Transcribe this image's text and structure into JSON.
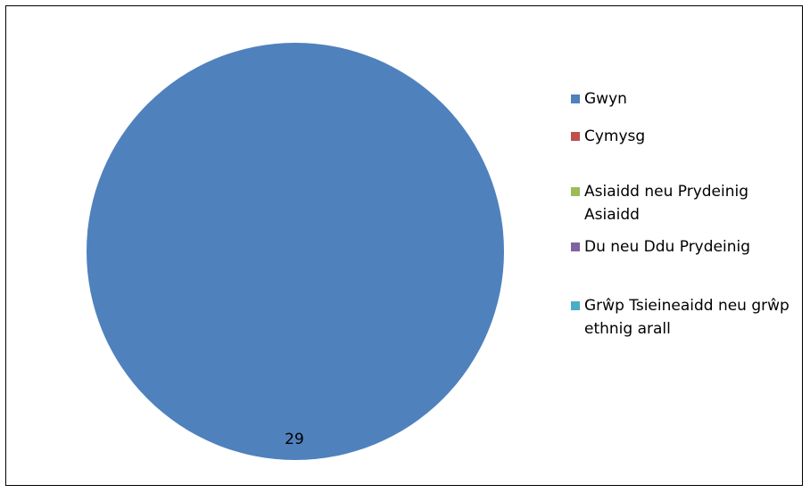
{
  "chart_data": {
    "type": "pie",
    "title": "",
    "categories": [
      "Gwyn",
      "Cymysg",
      "Asiaidd neu Prydeinig Asiaidd",
      "Du neu Ddu Prydeinig",
      "Grŵp Tsieineaidd neu grŵp ethnig arall"
    ],
    "values": [
      29,
      0,
      0,
      0,
      0
    ],
    "colors": [
      "#4F81BD",
      "#C0504D",
      "#9BBB59",
      "#8064A2",
      "#4BACC6"
    ],
    "data_labels": [
      "29"
    ],
    "legend_position": "right",
    "legend": [
      {
        "label": "Gwyn",
        "color": "#4F81BD"
      },
      {
        "label": "Cymysg",
        "color": "#C0504D"
      },
      {
        "label": "Asiaidd neu Prydeinig Asiaidd",
        "color": "#9BBB59"
      },
      {
        "label": "Du neu Ddu Prydeinig",
        "color": "#8064A2"
      },
      {
        "label": "Grŵp Tsieineaidd neu grŵp ethnig arall",
        "color": "#4BACC6"
      }
    ]
  }
}
